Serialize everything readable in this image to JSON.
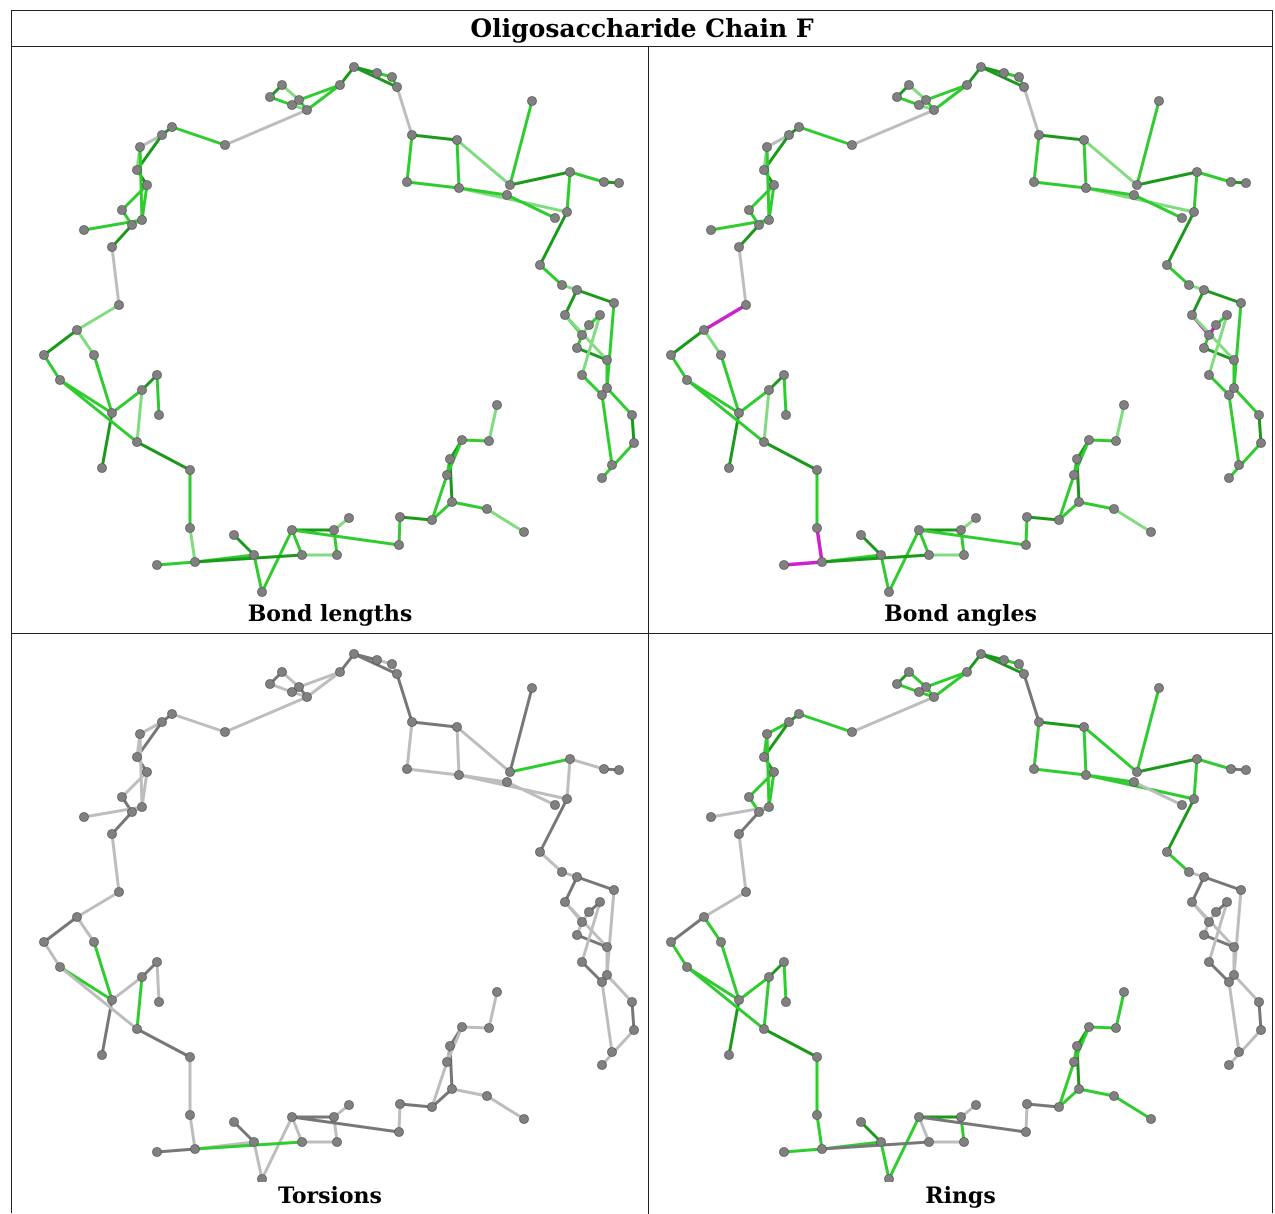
{
  "title": "Oligosaccharide Chain F",
  "colors": {
    "outlier_free": "#2ecc2e",
    "outlier_free_dark": "#1a9a1a",
    "outlier_free_light": "#7fdc7f",
    "angle_outlier": "#cc22cc",
    "unvalidated": "#bdbdbd",
    "unvalidated_dark": "#777777",
    "atom": "#808080"
  },
  "panels": [
    {
      "caption": "Bond lengths",
      "style": "green"
    },
    {
      "caption": "Bond angles",
      "style": "angles"
    },
    {
      "caption": "Torsions",
      "style": "torsions"
    },
    {
      "caption": "Rings",
      "style": "rings"
    }
  ]
}
